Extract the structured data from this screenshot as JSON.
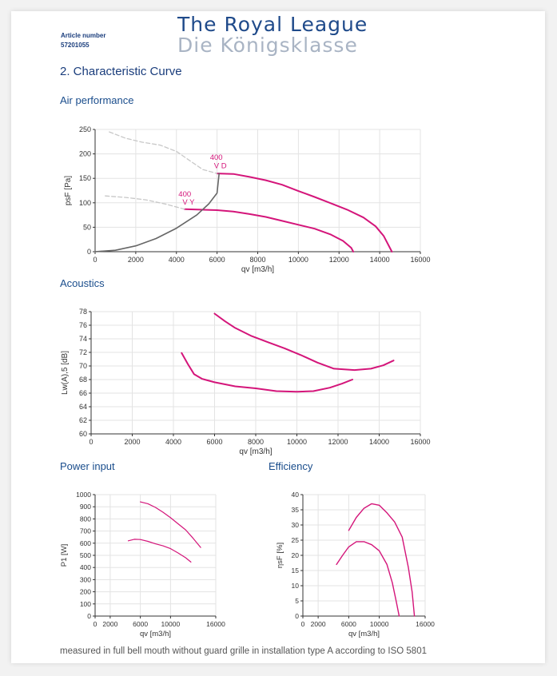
{
  "header": {
    "article_number_label": "Article number",
    "article_number": "57201055",
    "brand_en": "The Royal League",
    "brand_de": "Die Königsklasse",
    "brand_en_color": "#1f4a8a",
    "brand_de_color": "#a9b4c4"
  },
  "section_title": "2.  Characteristic Curve",
  "subtitles": {
    "air": "Air performance",
    "acoustics": "Acoustics",
    "power": "Power input",
    "efficiency": "Efficiency"
  },
  "footnote": "measured in full bell mouth without guard grille in installation type A according to ISO 5801",
  "colors": {
    "curve": "#d4157a",
    "system": "#666666",
    "dashed": "#c8c8c8",
    "grid": "#e3e3e3"
  },
  "chart_data": [
    {
      "id": "air",
      "type": "line",
      "xlabel": "qv [m3/h]",
      "ylabel": "psF [Pa]",
      "xlim": [
        0,
        16000
      ],
      "ylim": [
        0,
        250
      ],
      "xticks": [
        0,
        2000,
        4000,
        6000,
        8000,
        10000,
        12000,
        14000,
        16000
      ],
      "yticks": [
        0,
        50,
        100,
        150,
        200,
        250
      ],
      "grid": true,
      "annotations": [
        {
          "text": "400",
          "x": 5650,
          "y": 188
        },
        {
          "text": "V D",
          "x": 5850,
          "y": 171
        },
        {
          "text": "400",
          "x": 4100,
          "y": 113
        },
        {
          "text": "V Y",
          "x": 4300,
          "y": 96
        }
      ],
      "series": [
        {
          "style": "curve",
          "points": [
            [
              6000,
              160
            ],
            [
              6800,
              159
            ],
            [
              7600,
              153
            ],
            [
              8400,
              146
            ],
            [
              9200,
              137
            ],
            [
              10000,
              124
            ],
            [
              10800,
              112
            ],
            [
              11600,
              99
            ],
            [
              12400,
              86
            ],
            [
              13200,
              70
            ],
            [
              13800,
              52
            ],
            [
              14200,
              32
            ],
            [
              14600,
              0
            ]
          ]
        },
        {
          "style": "curve",
          "points": [
            [
              4400,
              87
            ],
            [
              5200,
              86
            ],
            [
              6000,
              85
            ],
            [
              6800,
              82
            ],
            [
              7600,
              77
            ],
            [
              8400,
              71
            ],
            [
              9200,
              63
            ],
            [
              10000,
              55
            ],
            [
              10800,
              47
            ],
            [
              11600,
              35
            ],
            [
              12200,
              22
            ],
            [
              12600,
              8
            ],
            [
              12700,
              0
            ]
          ]
        },
        {
          "style": "system",
          "points": [
            [
              0,
              0
            ],
            [
              1000,
              3
            ],
            [
              2000,
              12
            ],
            [
              3000,
              27
            ],
            [
              4000,
              48
            ],
            [
              5000,
              75
            ],
            [
              5600,
              98
            ],
            [
              6000,
              120
            ],
            [
              6100,
              160
            ]
          ]
        },
        {
          "style": "dashed",
          "points": [
            [
              700,
              245
            ],
            [
              1500,
              232
            ],
            [
              2300,
              224
            ],
            [
              3200,
              218
            ],
            [
              4000,
              205
            ],
            [
              4700,
              185
            ],
            [
              5300,
              168
            ],
            [
              6000,
              160
            ]
          ]
        },
        {
          "style": "dashed",
          "points": [
            [
              500,
              114
            ],
            [
              1500,
              111
            ],
            [
              2500,
              106
            ],
            [
              3500,
              97
            ],
            [
              4400,
              87
            ]
          ]
        }
      ]
    },
    {
      "id": "acoustics",
      "type": "line",
      "xlabel": "qv [m3/h]",
      "ylabel": "Lw(A),5 [dB]",
      "xlim": [
        0,
        16000
      ],
      "ylim": [
        60,
        78
      ],
      "xticks": [
        0,
        2000,
        4000,
        6000,
        8000,
        10000,
        12000,
        14000,
        16000
      ],
      "yticks": [
        60,
        62,
        64,
        66,
        68,
        70,
        72,
        74,
        76,
        78
      ],
      "grid": true,
      "series": [
        {
          "style": "curve",
          "points": [
            [
              6000,
              77.7
            ],
            [
              6500,
              76.6
            ],
            [
              7000,
              75.6
            ],
            [
              7800,
              74.4
            ],
            [
              8600,
              73.5
            ],
            [
              9400,
              72.6
            ],
            [
              10200,
              71.6
            ],
            [
              11000,
              70.5
            ],
            [
              11800,
              69.6
            ],
            [
              12800,
              69.4
            ],
            [
              13600,
              69.6
            ],
            [
              14200,
              70.1
            ],
            [
              14700,
              70.8
            ]
          ]
        },
        {
          "style": "curve",
          "points": [
            [
              4400,
              71.9
            ],
            [
              4700,
              70.3
            ],
            [
              5000,
              68.8
            ],
            [
              5400,
              68.1
            ],
            [
              6000,
              67.6
            ],
            [
              7000,
              67.0
            ],
            [
              8000,
              66.7
            ],
            [
              9000,
              66.3
            ],
            [
              10000,
              66.2
            ],
            [
              10800,
              66.3
            ],
            [
              11600,
              66.8
            ],
            [
              12200,
              67.4
            ],
            [
              12700,
              68.0
            ]
          ]
        }
      ]
    },
    {
      "id": "power",
      "type": "line",
      "xlabel": "qv [m3/h]",
      "ylabel": "P1 [W]",
      "xlim": [
        0,
        16000
      ],
      "ylim": [
        0,
        1000
      ],
      "xticks": [
        0,
        2000,
        6000,
        10000,
        16000
      ],
      "yticks": [
        0,
        100,
        200,
        300,
        400,
        500,
        600,
        700,
        800,
        900,
        1000
      ],
      "grid": true,
      "series": [
        {
          "style": "curve",
          "points": [
            [
              6000,
              940
            ],
            [
              7000,
              925
            ],
            [
              8000,
              895
            ],
            [
              9000,
              855
            ],
            [
              10000,
              810
            ],
            [
              11000,
              760
            ],
            [
              12000,
              710
            ],
            [
              13000,
              640
            ],
            [
              14000,
              565
            ]
          ]
        },
        {
          "style": "curve",
          "points": [
            [
              4400,
              620
            ],
            [
              5200,
              632
            ],
            [
              6000,
              630
            ],
            [
              7000,
              615
            ],
            [
              8000,
              595
            ],
            [
              9000,
              578
            ],
            [
              10000,
              555
            ],
            [
              11000,
              520
            ],
            [
              12000,
              480
            ],
            [
              12700,
              445
            ]
          ]
        }
      ]
    },
    {
      "id": "efficiency",
      "type": "line",
      "xlabel": "qv [m3/h]",
      "ylabel": "ηsF [%]",
      "xlim": [
        0,
        16000
      ],
      "ylim": [
        0,
        40
      ],
      "xticks": [
        0,
        2000,
        6000,
        10000,
        16000
      ],
      "yticks": [
        0,
        5,
        10,
        15,
        20,
        25,
        30,
        35,
        40
      ],
      "grid": true,
      "series": [
        {
          "style": "curve",
          "points": [
            [
              6000,
              28.2
            ],
            [
              7000,
              32.5
            ],
            [
              8000,
              35.5
            ],
            [
              9000,
              37
            ],
            [
              10000,
              36.5
            ],
            [
              11000,
              34
            ],
            [
              12000,
              31
            ],
            [
              13000,
              26
            ],
            [
              13800,
              16
            ],
            [
              14300,
              8
            ],
            [
              14600,
              0
            ]
          ]
        },
        {
          "style": "curve",
          "points": [
            [
              4400,
              17
            ],
            [
              5200,
              20
            ],
            [
              6000,
              22.8
            ],
            [
              7000,
              24.5
            ],
            [
              8000,
              24.5
            ],
            [
              9000,
              23.5
            ],
            [
              10000,
              21.5
            ],
            [
              11000,
              17
            ],
            [
              11700,
              11
            ],
            [
              12200,
              5
            ],
            [
              12600,
              0
            ]
          ]
        }
      ]
    }
  ]
}
